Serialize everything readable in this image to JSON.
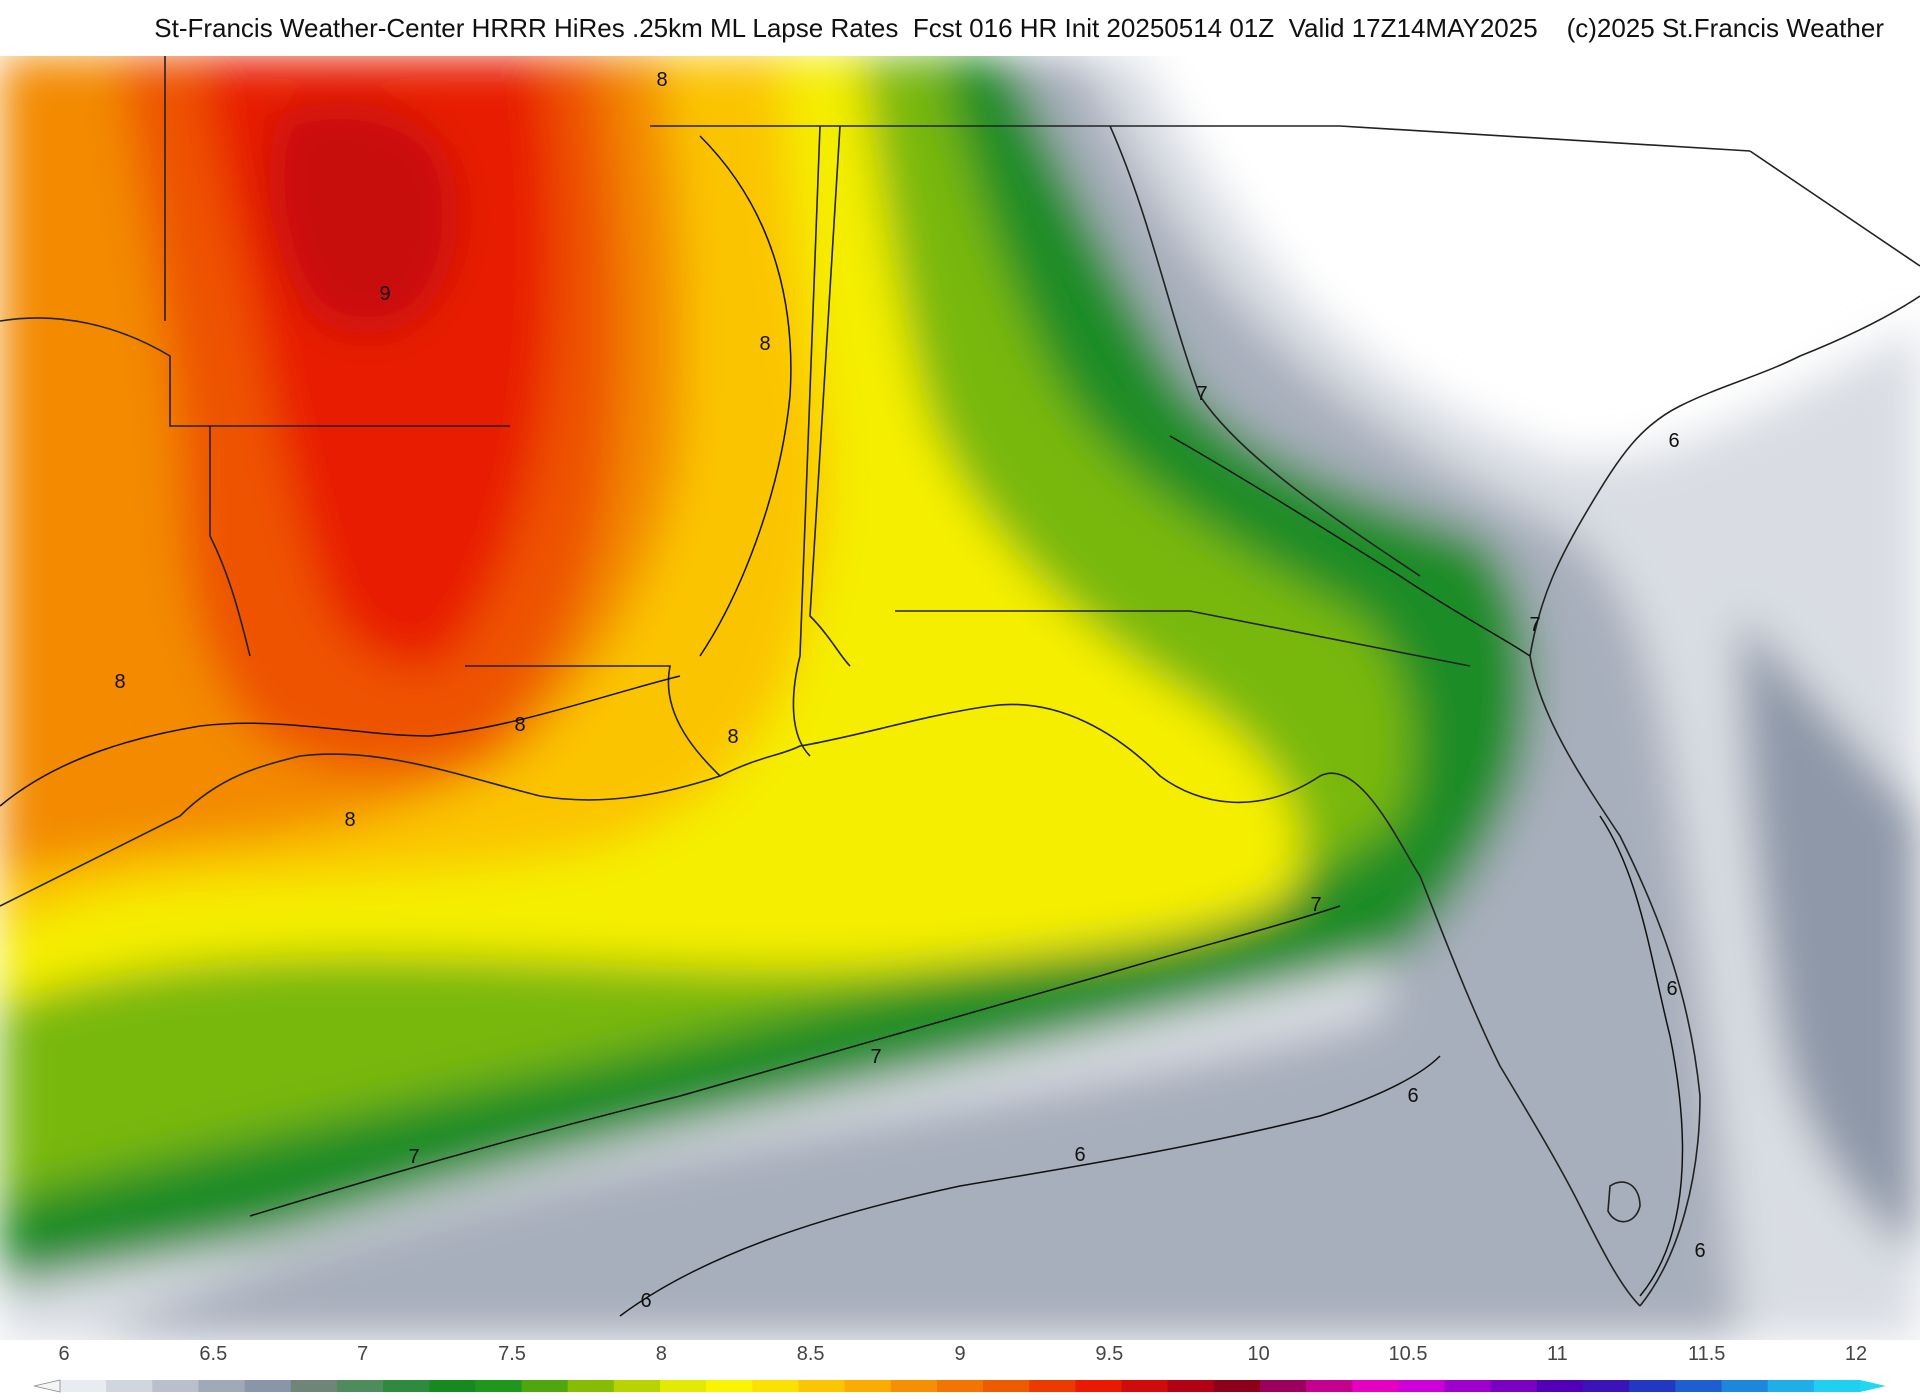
{
  "title": "St-Francis Weather-Center HRRR HiRes .25km ML Lapse Rates  Fcst 016 HR Init 20250514 01Z  Valid 17Z14MAY2025    (c)2025 St.Francis Weather",
  "legend": {
    "ticks": [
      "6",
      "6.5",
      "7",
      "7.5",
      "8",
      "8.5",
      "9",
      "9.5",
      "10",
      "10.5",
      "11",
      "11.5",
      "12"
    ],
    "colors": [
      "#e8ebef",
      "#d1d6de",
      "#b9c0cb",
      "#a0a9b8",
      "#8995a8",
      "#6f8579",
      "#4f8c5b",
      "#2e8a3c",
      "#178a1f",
      "#1f961c",
      "#4fa60d",
      "#86bd03",
      "#b9d300",
      "#e2ea00",
      "#fbf400",
      "#fbe000",
      "#fbc500",
      "#fbac00",
      "#f79000",
      "#f27500",
      "#ee5a00",
      "#ec3a00",
      "#e91a00",
      "#d10a0a",
      "#b30014",
      "#8c001a",
      "#9c005c",
      "#c4008f",
      "#e600c0",
      "#ce00d8",
      "#a000cc",
      "#7a00c2",
      "#5200b8",
      "#3a14b8",
      "#2338c2",
      "#1f5ed0",
      "#1f86de",
      "#1faee8",
      "#1fd0f0"
    ]
  },
  "contour_labels": [
    "9",
    "8",
    "8",
    "8",
    "8",
    "8",
    "8",
    "7",
    "7",
    "7",
    "7",
    "7",
    "6",
    "6",
    "6",
    "6",
    "6",
    "6"
  ]
}
